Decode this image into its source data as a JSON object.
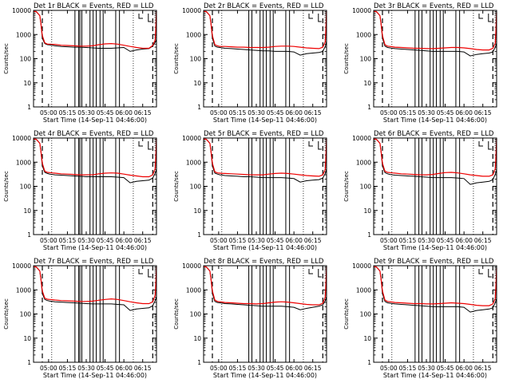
{
  "chart_data": {
    "type": "line",
    "layout": "3x3 grid",
    "time_ticks": [
      "05:00",
      "05:15",
      "05:30",
      "05:45",
      "06:00",
      "06:15"
    ],
    "x_tick_minutes": [
      5.0,
      20.0,
      35.0,
      50.0,
      65.0,
      80.0
    ],
    "x_range_minutes": [
      -7.0,
      91.0
    ],
    "y_log": true,
    "ylim": [
      1,
      10000
    ],
    "y_ticks": [
      "1",
      "10",
      "100",
      "1000",
      "10000"
    ],
    "x_time_origin": "14-Sep-11 04:46:00",
    "x_minutes_grid": [
      -7,
      -5,
      -4,
      -2,
      -1,
      0,
      2,
      4,
      6,
      8,
      10,
      15,
      20,
      25,
      30,
      35,
      40,
      45,
      50,
      55,
      60,
      65,
      70,
      75,
      80,
      85,
      88,
      90,
      91
    ],
    "series_colors": {
      "black": "#000000",
      "red": "#ee0000"
    },
    "dashed_minutes": [
      0,
      88
    ],
    "dotted_minutes": [
      7.5,
      72.5
    ],
    "solid_minutes_sets": [
      [
        26,
        29,
        30,
        31.5,
        38,
        40.5,
        43,
        46,
        48.5,
        58.5,
        61.5
      ],
      [
        29,
        31.5,
        38,
        40.5,
        43,
        46,
        48.5,
        58.5,
        61.5
      ],
      [
        26,
        29,
        31.5,
        38,
        40.5,
        43,
        46,
        48.5,
        58.5,
        61.5
      ]
    ],
    "panels": [
      {
        "title": "Det 1r BLACK = Events, RED = LLD",
        "xlabel": "Start Time (14-Sep-11 04:46:00)",
        "ylabel": "Counts/sec",
        "solid_set": 0,
        "red": [
          9000,
          9000,
          8000,
          6000,
          2500,
          900,
          450,
          400,
          400,
          395,
          390,
          360,
          350,
          340,
          330,
          330,
          340,
          380,
          410,
          420,
          400,
          360,
          320,
          290,
          270,
          270,
          350,
          600,
          9000
        ],
        "black": [
          9000,
          9000,
          8000,
          6000,
          2500,
          700,
          420,
          380,
          370,
          360,
          340,
          320,
          310,
          300,
          300,
          290,
          280,
          270,
          270,
          270,
          280,
          290,
          200,
          230,
          250,
          260,
          330,
          480,
          600
        ]
      },
      {
        "title": "Det 2r BLACK = Events, RED = LLD",
        "xlabel": "Start Time (14-Sep-11 04:46:00)",
        "ylabel": "Counts/sec",
        "solid_set": 1,
        "red": [
          9000,
          9000,
          8000,
          6000,
          2500,
          900,
          380,
          340,
          320,
          320,
          320,
          310,
          300,
          300,
          290,
          290,
          290,
          300,
          320,
          330,
          330,
          320,
          300,
          280,
          270,
          260,
          300,
          500,
          9000
        ],
        "black": [
          9000,
          9000,
          8000,
          6000,
          2500,
          700,
          330,
          300,
          290,
          280,
          270,
          260,
          250,
          240,
          230,
          220,
          210,
          210,
          200,
          200,
          200,
          190,
          140,
          160,
          170,
          180,
          200,
          320,
          500
        ]
      },
      {
        "title": "Det 3r BLACK = Events, RED = LLD",
        "xlabel": "Start Time (14-Sep-11 04:46:00)",
        "ylabel": "Counts/sec",
        "solid_set": 2,
        "red": [
          9000,
          9000,
          8000,
          6000,
          2500,
          900,
          380,
          330,
          320,
          310,
          300,
          290,
          280,
          270,
          270,
          260,
          260,
          270,
          280,
          290,
          290,
          280,
          260,
          240,
          230,
          230,
          270,
          450,
          8000
        ],
        "black": [
          9000,
          9000,
          8000,
          6000,
          2500,
          700,
          330,
          290,
          280,
          270,
          260,
          250,
          240,
          230,
          220,
          210,
          200,
          200,
          200,
          200,
          200,
          190,
          130,
          150,
          160,
          170,
          190,
          300,
          450
        ]
      },
      {
        "title": "Det 4r BLACK = Events, RED = LLD",
        "xlabel": "Start Time (14-Sep-11 04:46:00)",
        "ylabel": "Counts/sec",
        "solid_set": 0,
        "red": [
          9000,
          9000,
          8000,
          6000,
          2500,
          900,
          420,
          380,
          370,
          360,
          350,
          330,
          320,
          310,
          300,
          300,
          300,
          330,
          350,
          360,
          350,
          320,
          290,
          270,
          250,
          250,
          300,
          550,
          9000
        ],
        "black": [
          9000,
          9000,
          8000,
          6000,
          2500,
          700,
          380,
          340,
          320,
          310,
          300,
          290,
          280,
          270,
          260,
          250,
          250,
          250,
          250,
          250,
          240,
          230,
          140,
          160,
          170,
          180,
          220,
          350,
          500
        ]
      },
      {
        "title": "Det 5r BLACK = Events, RED = LLD",
        "xlabel": "Start Time (14-Sep-11 04:46:00)",
        "ylabel": "Counts/sec",
        "solid_set": 1,
        "red": [
          9000,
          9000,
          8000,
          6000,
          2500,
          900,
          400,
          360,
          350,
          340,
          340,
          330,
          320,
          310,
          300,
          300,
          300,
          320,
          340,
          350,
          340,
          320,
          300,
          280,
          270,
          260,
          300,
          500,
          9000
        ],
        "black": [
          9000,
          9000,
          8000,
          6000,
          2500,
          700,
          350,
          320,
          300,
          290,
          280,
          270,
          260,
          250,
          250,
          240,
          230,
          230,
          230,
          230,
          220,
          210,
          150,
          170,
          180,
          190,
          220,
          340,
          500
        ]
      },
      {
        "title": "Det 6r BLACK = Events, RED = LLD",
        "xlabel": "Start Time (14-Sep-11 04:46:00)",
        "ylabel": "Counts/sec",
        "solid_set": 2,
        "red": [
          9000,
          9000,
          8000,
          6000,
          2500,
          900,
          420,
          380,
          370,
          360,
          350,
          330,
          320,
          310,
          300,
          300,
          310,
          340,
          370,
          380,
          360,
          330,
          300,
          280,
          260,
          260,
          300,
          550,
          9000
        ],
        "black": [
          9000,
          9000,
          8000,
          6000,
          2500,
          700,
          370,
          330,
          310,
          300,
          290,
          280,
          270,
          260,
          250,
          240,
          230,
          230,
          230,
          230,
          220,
          210,
          120,
          140,
          150,
          160,
          190,
          320,
          480
        ]
      },
      {
        "title": "Det 7r BLACK = Events, RED = LLD",
        "xlabel": "Start Time (14-Sep-11 04:46:00)",
        "ylabel": "Counts/sec",
        "solid_set": 0,
        "red": [
          9000,
          9000,
          8000,
          6000,
          2500,
          900,
          450,
          410,
          400,
          390,
          380,
          360,
          350,
          340,
          330,
          330,
          340,
          370,
          400,
          420,
          400,
          360,
          320,
          290,
          270,
          270,
          320,
          600,
          9000
        ],
        "black": [
          9000,
          9000,
          8000,
          6000,
          2500,
          700,
          400,
          360,
          340,
          330,
          320,
          310,
          300,
          290,
          280,
          270,
          260,
          260,
          260,
          260,
          250,
          240,
          140,
          160,
          170,
          180,
          220,
          360,
          520
        ]
      },
      {
        "title": "Det 8r BLACK = Events, RED = LLD",
        "xlabel": "Start Time (14-Sep-11 04:46:00)",
        "ylabel": "Counts/sec",
        "solid_set": 1,
        "red": [
          9000,
          9000,
          8000,
          6000,
          2500,
          900,
          380,
          330,
          320,
          310,
          300,
          290,
          280,
          270,
          270,
          260,
          270,
          290,
          310,
          320,
          310,
          290,
          270,
          250,
          240,
          240,
          280,
          500,
          9000
        ],
        "black": [
          9000,
          9000,
          8000,
          6000,
          2500,
          700,
          330,
          300,
          290,
          280,
          270,
          260,
          250,
          240,
          230,
          220,
          210,
          210,
          210,
          210,
          200,
          190,
          150,
          170,
          190,
          210,
          240,
          350,
          500
        ]
      },
      {
        "title": "Det 9r BLACK = Events, RED = LLD",
        "xlabel": "Start Time (14-Sep-11 04:46:00)",
        "ylabel": "Counts/sec",
        "solid_set": 2,
        "red": [
          9000,
          9000,
          8000,
          6000,
          2500,
          900,
          380,
          330,
          320,
          310,
          300,
          290,
          280,
          270,
          270,
          260,
          260,
          270,
          280,
          290,
          280,
          270,
          250,
          230,
          220,
          220,
          260,
          450,
          8000
        ],
        "black": [
          9000,
          9000,
          8000,
          6000,
          2500,
          700,
          330,
          290,
          280,
          270,
          260,
          250,
          240,
          230,
          220,
          210,
          200,
          200,
          200,
          200,
          200,
          190,
          120,
          140,
          150,
          160,
          180,
          300,
          450
        ]
      }
    ]
  }
}
